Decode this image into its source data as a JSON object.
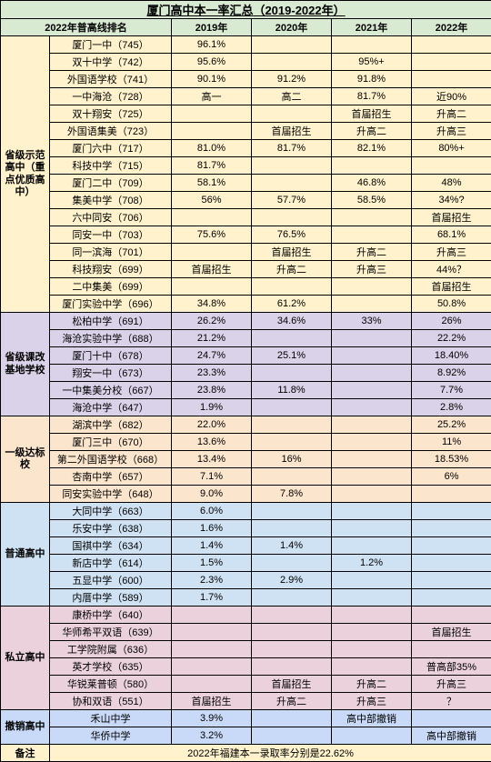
{
  "title": "厦门高中本一率汇总（2019-2022年）",
  "headers": {
    "name": "2022年普高线排名",
    "y19": "2019年",
    "y20": "2020年",
    "y21": "2021年",
    "y22": "2022年"
  },
  "colors": {
    "header_bg": "#d9ead3",
    "cat1_bg": "#fff2cc",
    "cat2_bg": "#d9d2e9",
    "cat3_bg": "#fce5cd",
    "cat4_bg": "#cfe2f3",
    "cat5_bg": "#ead1dc",
    "cat6_bg": "#c9daf8",
    "note_bg": "#fff2cc"
  },
  "categories": [
    {
      "name": "省级示范高中（重点优质高中）",
      "bg": "#fff2cc",
      "rows": [
        {
          "n": "厦门一中（745）",
          "y19": "96.1%",
          "y20": "",
          "y21": "",
          "y22": ""
        },
        {
          "n": "双十中学（742）",
          "y19": "95.6%",
          "y20": "",
          "y21": "95%+",
          "y22": ""
        },
        {
          "n": "外国语学校（741）",
          "y19": "90.1%",
          "y20": "91.2%",
          "y21": "91.8%",
          "y22": ""
        },
        {
          "n": "一中海沧（728）",
          "y19": "高一",
          "y20": "高二",
          "y21": "81.7%",
          "y22": "近90%"
        },
        {
          "n": "双十翔安（725）",
          "y19": "",
          "y20": "",
          "y21": "首届招生",
          "y22": "升高二"
        },
        {
          "n": "外国语集美（723）",
          "y19": "",
          "y20": "首届招生",
          "y21": "升高二",
          "y22": "升高三"
        },
        {
          "n": "厦门六中（717）",
          "y19": "81.0%",
          "y20": "81.7%",
          "y21": "82.1%",
          "y22": "80%+"
        },
        {
          "n": "科技中学（715）",
          "y19": "81.7%",
          "y20": "",
          "y21": "",
          "y22": ""
        },
        {
          "n": "厦门二中（709）",
          "y19": "58.1%",
          "y20": "",
          "y21": "46.8%",
          "y22": "48%"
        },
        {
          "n": "集美中学（708）",
          "y19": "56%",
          "y20": "57.7%",
          "y21": "58.5%",
          "y22": "34%?"
        },
        {
          "n": "六中同安（706）",
          "y19": "",
          "y20": "",
          "y21": "",
          "y22": "首届招生"
        },
        {
          "n": "同安一中（703）",
          "y19": "75.6%",
          "y20": "76.5%",
          "y21": "",
          "y22": "68.1%"
        },
        {
          "n": "同一滨海（701）",
          "y19": "",
          "y20": "首届招生",
          "y21": "升高二",
          "y22": "升高三"
        },
        {
          "n": "科技翔安（699）",
          "y19": "首届招生",
          "y20": "升高二",
          "y21": "升高三",
          "y22": "44%？"
        },
        {
          "n": "二中集美（699）",
          "y19": "",
          "y20": "",
          "y21": "",
          "y22": "首届招生"
        },
        {
          "n": "厦门实验中学（696）",
          "y19": "34.8%",
          "y20": "61.2%",
          "y21": "",
          "y22": "50.8%"
        }
      ]
    },
    {
      "name": "省级课改基地学校",
      "bg": "#d9d2e9",
      "rows": [
        {
          "n": "松柏中学（691）",
          "y19": "26.2%",
          "y20": "34.6%",
          "y21": "33%",
          "y22": "26%"
        },
        {
          "n": "海沧实验中学（688）",
          "y19": "21.2%",
          "y20": "",
          "y21": "",
          "y22": "22.2%"
        },
        {
          "n": "厦门十中（678）",
          "y19": "24.7%",
          "y20": "25.1%",
          "y21": "",
          "y22": "18.40%"
        },
        {
          "n": "翔安一中（673）",
          "y19": "23.3%",
          "y20": "",
          "y21": "",
          "y22": "8.92%"
        },
        {
          "n": "一中集美分校（667）",
          "y19": "23.8%",
          "y20": "11.8%",
          "y21": "",
          "y22": "7.7%"
        },
        {
          "n": "海沧中学（647）",
          "y19": "1.9%",
          "y20": "",
          "y21": "",
          "y22": "2.8%"
        }
      ]
    },
    {
      "name": "一级达标校",
      "bg": "#fce5cd",
      "rows": [
        {
          "n": "湖滨中学（682）",
          "y19": "22.0%",
          "y20": "",
          "y21": "",
          "y22": "25.2%"
        },
        {
          "n": "厦门三中（670）",
          "y19": "13.6%",
          "y20": "",
          "y21": "",
          "y22": "11%"
        },
        {
          "n": "第二外国语学校（668）",
          "y19": "13.4%",
          "y20": "16%",
          "y21": "",
          "y22": "18.53%"
        },
        {
          "n": "杏南中学（657）",
          "y19": "7.1%",
          "y20": "",
          "y21": "",
          "y22": "6%"
        },
        {
          "n": "同安实验中学（648）",
          "y19": "9.0%",
          "y20": "7.8%",
          "y21": "",
          "y22": ""
        }
      ]
    },
    {
      "name": "普通高中",
      "bg": "#cfe2f3",
      "rows": [
        {
          "n": "大同中学（663）",
          "y19": "6.0%",
          "y20": "",
          "y21": "",
          "y22": ""
        },
        {
          "n": "乐安中学（638）",
          "y19": "1.6%",
          "y20": "",
          "y21": "",
          "y22": ""
        },
        {
          "n": "国祺中学（634）",
          "y19": "1.4%",
          "y20": "1.4%",
          "y21": "",
          "y22": ""
        },
        {
          "n": "新店中学（614）",
          "y19": "1.5%",
          "y20": "",
          "y21": "1.2%",
          "y22": ""
        },
        {
          "n": "五显中学（600）",
          "y19": "2.3%",
          "y20": "2.9%",
          "y21": "",
          "y22": ""
        },
        {
          "n": "内厝中学（589）",
          "y19": "1.7%",
          "y20": "",
          "y21": "",
          "y22": ""
        }
      ]
    },
    {
      "name": "私立高中",
      "bg": "#ead1dc",
      "rows": [
        {
          "n": "康桥中学（640）",
          "y19": "",
          "y20": "",
          "y21": "",
          "y22": ""
        },
        {
          "n": "华师希平双语（639）",
          "y19": "",
          "y20": "",
          "y21": "",
          "y22": "首届招生"
        },
        {
          "n": "工学院附属（636）",
          "y19": "",
          "y20": "",
          "y21": "",
          "y22": ""
        },
        {
          "n": "英才学校（635）",
          "y19": "",
          "y20": "",
          "y21": "",
          "y22": "普高部35%"
        },
        {
          "n": "华锐莱普顿（580）",
          "y19": "",
          "y20": "首届招生",
          "y21": "升高二",
          "y22": "升高三"
        },
        {
          "n": "协和双语（551）",
          "y19": "首届招生",
          "y20": "升高二",
          "y21": "升高三",
          "y22": "？"
        }
      ]
    },
    {
      "name": "撤销高中",
      "bg": "#c9daf8",
      "rows": [
        {
          "n": "禾山中学",
          "y19": "3.9%",
          "y20": "",
          "y21": "高中部撤销",
          "y22": ""
        },
        {
          "n": "华侨中学",
          "y19": "3.2%",
          "y20": "",
          "y21": "",
          "y22": "高中部撤销"
        }
      ]
    }
  ],
  "note": {
    "label": "备注",
    "text": "2022年福建本一录取率分别是22.62%"
  }
}
